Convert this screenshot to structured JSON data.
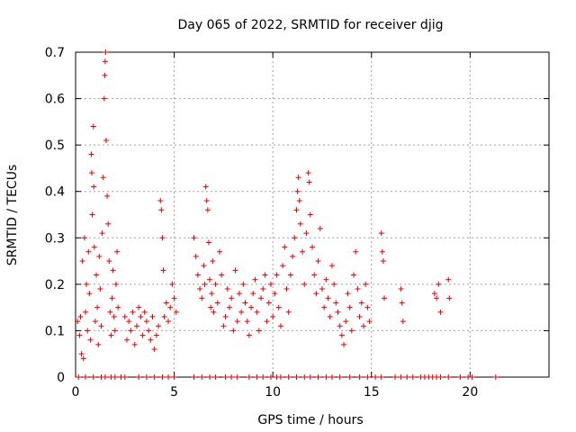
{
  "chart_data": {
    "type": "scatter",
    "title": "Day 065 of 2022, SRMTID for receiver djig",
    "xlabel": "GPS time / hours",
    "ylabel": "SRMTID / TECUs",
    "xlim": [
      0,
      24
    ],
    "ylim": [
      0,
      0.7
    ],
    "xticks": [
      0,
      5,
      10,
      15,
      20
    ],
    "yticks": [
      0,
      0.1,
      0.2,
      0.3,
      0.4,
      0.5,
      0.6,
      0.7
    ],
    "xtick_labels": [
      "0",
      "5",
      "10",
      "15",
      "20"
    ],
    "ytick_labels": [
      "0",
      "0.1",
      "0.2",
      "0.3",
      "0.4",
      "0.5",
      "0.6",
      "0.7"
    ],
    "grid": true,
    "marker": "+",
    "color": "#e00000",
    "series": [
      {
        "name": "SRMTID",
        "points": [
          [
            0.1,
            0.12
          ],
          [
            0.2,
            0.09
          ],
          [
            0.25,
            0.13
          ],
          [
            0.3,
            0.05
          ],
          [
            0.35,
            0.25
          ],
          [
            0.4,
            0.04
          ],
          [
            0.45,
            0.3
          ],
          [
            0.5,
            0.14
          ],
          [
            0.55,
            0.2
          ],
          [
            0.6,
            0.1
          ],
          [
            0.65,
            0.27
          ],
          [
            0.7,
            0.18
          ],
          [
            0.75,
            0.08
          ],
          [
            0.8,
            0.48
          ],
          [
            0.82,
            0.44
          ],
          [
            0.85,
            0.35
          ],
          [
            0.9,
            0.54
          ],
          [
            0.92,
            0.41
          ],
          [
            0.95,
            0.28
          ],
          [
            1.0,
            0.12
          ],
          [
            1.05,
            0.22
          ],
          [
            1.1,
            0.15
          ],
          [
            1.15,
            0.07
          ],
          [
            1.2,
            0.26
          ],
          [
            1.25,
            0.19
          ],
          [
            1.3,
            0.11
          ],
          [
            1.35,
            0.31
          ],
          [
            1.4,
            0.43
          ],
          [
            1.45,
            0.6
          ],
          [
            1.48,
            0.65
          ],
          [
            1.5,
            0.68
          ],
          [
            1.52,
            0.7
          ],
          [
            1.55,
            0.51
          ],
          [
            1.6,
            0.39
          ],
          [
            1.65,
            0.33
          ],
          [
            1.7,
            0.25
          ],
          [
            1.75,
            0.14
          ],
          [
            1.8,
            0.09
          ],
          [
            1.85,
            0.17
          ],
          [
            1.9,
            0.23
          ],
          [
            1.95,
            0.13
          ],
          [
            2.0,
            0.1
          ],
          [
            2.05,
            0.2
          ],
          [
            2.1,
            0.27
          ],
          [
            2.15,
            0.15
          ],
          [
            2.5,
            0.13
          ],
          [
            2.6,
            0.08
          ],
          [
            2.7,
            0.12
          ],
          [
            2.8,
            0.1
          ],
          [
            2.9,
            0.14
          ],
          [
            3.0,
            0.07
          ],
          [
            3.1,
            0.11
          ],
          [
            3.2,
            0.15
          ],
          [
            3.3,
            0.13
          ],
          [
            3.4,
            0.09
          ],
          [
            3.5,
            0.14
          ],
          [
            3.6,
            0.12
          ],
          [
            3.7,
            0.1
          ],
          [
            3.8,
            0.08
          ],
          [
            3.9,
            0.13
          ],
          [
            4.0,
            0.06
          ],
          [
            4.1,
            0.09
          ],
          [
            4.2,
            0.11
          ],
          [
            4.3,
            0.38
          ],
          [
            4.35,
            0.36
          ],
          [
            4.4,
            0.3
          ],
          [
            4.45,
            0.23
          ],
          [
            4.5,
            0.13
          ],
          [
            4.6,
            0.16
          ],
          [
            4.7,
            0.12
          ],
          [
            4.8,
            0.15
          ],
          [
            4.9,
            0.2
          ],
          [
            5.0,
            0.17
          ],
          [
            5.1,
            0.14
          ],
          [
            6.0,
            0.3
          ],
          [
            6.1,
            0.26
          ],
          [
            6.2,
            0.22
          ],
          [
            6.3,
            0.19
          ],
          [
            6.4,
            0.17
          ],
          [
            6.5,
            0.24
          ],
          [
            6.55,
            0.2
          ],
          [
            6.6,
            0.41
          ],
          [
            6.65,
            0.38
          ],
          [
            6.7,
            0.36
          ],
          [
            6.75,
            0.29
          ],
          [
            6.8,
            0.21
          ],
          [
            6.85,
            0.15
          ],
          [
            6.9,
            0.18
          ],
          [
            6.95,
            0.25
          ],
          [
            7.0,
            0.14
          ],
          [
            7.1,
            0.2
          ],
          [
            7.2,
            0.16
          ],
          [
            7.3,
            0.27
          ],
          [
            7.4,
            0.22
          ],
          [
            7.5,
            0.11
          ],
          [
            7.6,
            0.13
          ],
          [
            7.7,
            0.19
          ],
          [
            7.8,
            0.15
          ],
          [
            7.9,
            0.17
          ],
          [
            8.0,
            0.1
          ],
          [
            8.1,
            0.23
          ],
          [
            8.2,
            0.12
          ],
          [
            8.3,
            0.18
          ],
          [
            8.4,
            0.14
          ],
          [
            8.5,
            0.2
          ],
          [
            8.6,
            0.16
          ],
          [
            8.7,
            0.12
          ],
          [
            8.8,
            0.09
          ],
          [
            8.9,
            0.15
          ],
          [
            9.0,
            0.18
          ],
          [
            9.1,
            0.21
          ],
          [
            9.2,
            0.14
          ],
          [
            9.3,
            0.1
          ],
          [
            9.4,
            0.17
          ],
          [
            9.5,
            0.19
          ],
          [
            9.6,
            0.22
          ],
          [
            9.7,
            0.12
          ],
          [
            9.8,
            0.16
          ],
          [
            9.9,
            0.2
          ],
          [
            10.0,
            0.13
          ],
          [
            10.1,
            0.18
          ],
          [
            10.2,
            0.22
          ],
          [
            10.3,
            0.15
          ],
          [
            10.4,
            0.11
          ],
          [
            10.5,
            0.24
          ],
          [
            10.6,
            0.28
          ],
          [
            10.7,
            0.19
          ],
          [
            10.8,
            0.14
          ],
          [
            10.9,
            0.22
          ],
          [
            11.0,
            0.26
          ],
          [
            11.1,
            0.3
          ],
          [
            11.2,
            0.36
          ],
          [
            11.25,
            0.4
          ],
          [
            11.3,
            0.43
          ],
          [
            11.35,
            0.38
          ],
          [
            11.4,
            0.33
          ],
          [
            11.5,
            0.27
          ],
          [
            11.6,
            0.2
          ],
          [
            11.7,
            0.31
          ],
          [
            11.8,
            0.44
          ],
          [
            11.85,
            0.42
          ],
          [
            11.9,
            0.35
          ],
          [
            12.0,
            0.28
          ],
          [
            12.1,
            0.22
          ],
          [
            12.2,
            0.18
          ],
          [
            12.3,
            0.25
          ],
          [
            12.4,
            0.32
          ],
          [
            12.5,
            0.19
          ],
          [
            12.6,
            0.15
          ],
          [
            12.7,
            0.21
          ],
          [
            12.8,
            0.17
          ],
          [
            12.9,
            0.13
          ],
          [
            13.0,
            0.24
          ],
          [
            13.1,
            0.2
          ],
          [
            13.2,
            0.16
          ],
          [
            13.3,
            0.14
          ],
          [
            13.4,
            0.11
          ],
          [
            13.5,
            0.09
          ],
          [
            13.6,
            0.07
          ],
          [
            13.7,
            0.12
          ],
          [
            13.8,
            0.18
          ],
          [
            13.9,
            0.15
          ],
          [
            14.0,
            0.1
          ],
          [
            14.1,
            0.22
          ],
          [
            14.2,
            0.27
          ],
          [
            14.3,
            0.19
          ],
          [
            14.4,
            0.13
          ],
          [
            14.5,
            0.16
          ],
          [
            14.6,
            0.11
          ],
          [
            14.7,
            0.2
          ],
          [
            14.8,
            0.15
          ],
          [
            14.9,
            0.12
          ],
          [
            15.5,
            0.31
          ],
          [
            15.55,
            0.27
          ],
          [
            15.6,
            0.25
          ],
          [
            15.65,
            0.17
          ],
          [
            16.5,
            0.19
          ],
          [
            16.55,
            0.16
          ],
          [
            16.6,
            0.12
          ],
          [
            18.2,
            0.18
          ],
          [
            18.3,
            0.17
          ],
          [
            18.4,
            0.2
          ],
          [
            18.5,
            0.14
          ],
          [
            18.9,
            0.21
          ],
          [
            18.95,
            0.17
          ]
        ]
      }
    ],
    "zero_points_x": [
      0.15,
      0.5,
      0.9,
      1.3,
      1.5,
      1.8,
      2.0,
      2.3,
      2.5,
      3.2,
      3.6,
      4.0,
      4.4,
      4.7,
      5.0,
      6.0,
      6.4,
      6.8,
      7.1,
      7.6,
      7.9,
      8.2,
      8.8,
      9.2,
      9.5,
      9.9,
      10.2,
      10.4,
      10.8,
      11.2,
      11.6,
      11.9,
      12.3,
      12.7,
      13.0,
      13.4,
      13.9,
      14.4,
      14.8,
      15.2,
      15.5,
      16.2,
      16.5,
      16.8,
      17.1,
      17.5,
      17.7,
      17.9,
      18.1,
      18.3,
      18.5,
      18.9,
      19.5,
      19.9,
      20.1,
      21.3
    ]
  }
}
